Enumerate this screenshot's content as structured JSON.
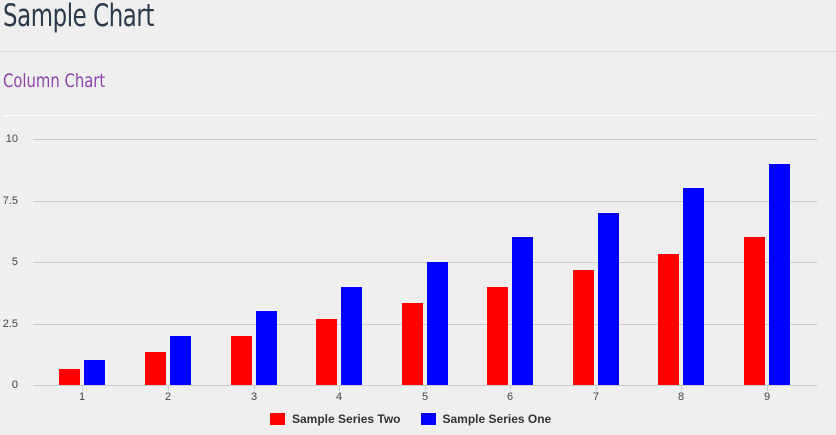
{
  "header": {
    "title": "Sample Chart",
    "subtitle": "Column Chart"
  },
  "colors": {
    "title": "#2b3a4a",
    "subtitle": "#8e44ad",
    "series_two": "#ff0000",
    "series_one": "#0000ff",
    "gridline": "#cccccc",
    "background": "#efefef"
  },
  "legend": {
    "items": [
      {
        "label": "Sample Series Two",
        "color": "#ff0000"
      },
      {
        "label": "Sample Series One",
        "color": "#0000ff"
      }
    ]
  },
  "chart_data": {
    "type": "bar",
    "title": "Column Chart",
    "xlabel": "",
    "ylabel": "",
    "categories": [
      "1",
      "2",
      "3",
      "4",
      "5",
      "6",
      "7",
      "8",
      "9"
    ],
    "series": [
      {
        "name": "Sample Series Two",
        "color": "#ff0000",
        "values": [
          0.67,
          1.33,
          2,
          2.67,
          3.33,
          4,
          4.67,
          5.33,
          6
        ]
      },
      {
        "name": "Sample Series One",
        "color": "#0000ff",
        "values": [
          1,
          2,
          3,
          4,
          5,
          6,
          7,
          8,
          9
        ]
      }
    ],
    "ylim": [
      0,
      10
    ],
    "yticks": [
      "0",
      "2.5",
      "5",
      "7.5",
      "10"
    ],
    "ytick_values": [
      0,
      2.5,
      5,
      7.5,
      10
    ],
    "grid": true,
    "legend_position": "bottom"
  }
}
